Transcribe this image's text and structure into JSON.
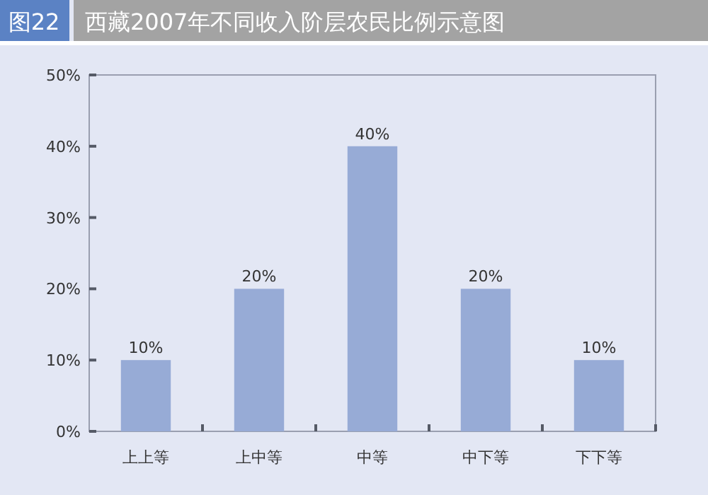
{
  "chart_data": {
    "type": "bar",
    "title": "西藏2007年不同收入阶层农民比例示意图",
    "annotations": [
      "图22"
    ],
    "categories": [
      "上上等",
      "上中等",
      "中等",
      "中下等",
      "下下等"
    ],
    "values": [
      10,
      20,
      40,
      20,
      10
    ],
    "value_labels": [
      "10%",
      "20%",
      "40%",
      "20%",
      "10%"
    ],
    "color": "#97abd6",
    "ylim": [
      0,
      50
    ],
    "yticks": [
      {
        "value": 0,
        "label": "0%"
      },
      {
        "value": 10,
        "label": "10%"
      },
      {
        "value": 20,
        "label": "20%"
      },
      {
        "value": 30,
        "label": "30%"
      },
      {
        "value": 40,
        "label": "40%"
      },
      {
        "value": 50,
        "label": "50%"
      }
    ],
    "grid": false
  }
}
